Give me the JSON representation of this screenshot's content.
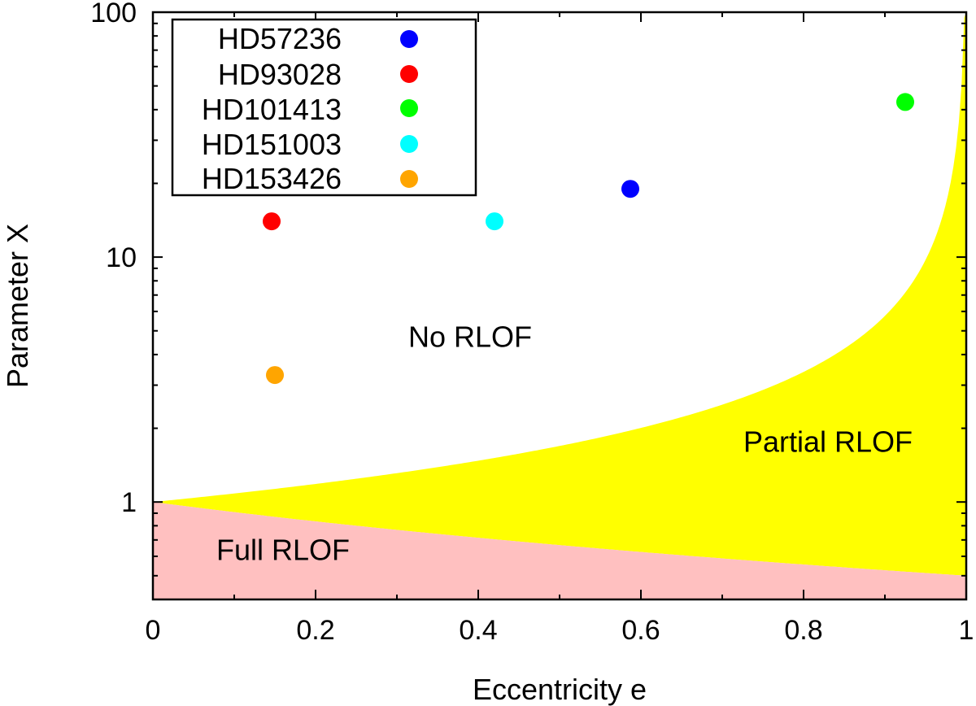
{
  "chart_data": {
    "type": "scatter",
    "title": "",
    "xlabel": "Eccentricity e",
    "ylabel": "Parameter X",
    "xlim": [
      0,
      1
    ],
    "ylim": [
      0.4,
      100
    ],
    "yscale": "log",
    "x_ticks": [
      {
        "value": 0,
        "label": "0"
      },
      {
        "value": 0.2,
        "label": "0.2"
      },
      {
        "value": 0.4,
        "label": "0.4"
      },
      {
        "value": 0.6,
        "label": "0.6"
      },
      {
        "value": 0.8,
        "label": "0.8"
      },
      {
        "value": 1,
        "label": "1"
      }
    ],
    "y_ticks": [
      {
        "value": 1,
        "label": "1"
      },
      {
        "value": 10,
        "label": "10"
      },
      {
        "value": 100,
        "label": "100"
      }
    ],
    "series": [
      {
        "name": "HD57236",
        "color": "#0000ff",
        "x": 0.587,
        "y": 19.0
      },
      {
        "name": "HD93028",
        "color": "#ff0000",
        "x": 0.146,
        "y": 14.0
      },
      {
        "name": "HD101413",
        "color": "#00ff00",
        "x": 0.925,
        "y": 43.0
      },
      {
        "name": "HD151003",
        "color": "#00ffff",
        "x": 0.42,
        "y": 14.0
      },
      {
        "name": "HD153426",
        "color": "#ffa500",
        "x": 0.15,
        "y": 3.3
      }
    ],
    "regions": [
      {
        "name": "No RLOF",
        "label": "No RLOF",
        "color": "#ffffff",
        "label_at": [
          0.39,
          4.3
        ]
      },
      {
        "name": "Partial RLOF",
        "label": "Partial RLOF",
        "color": "#ffff00",
        "label_at": [
          0.83,
          1.6
        ]
      },
      {
        "name": "Full RLOF",
        "label": "Full RLOF",
        "color": "#ffc0c0",
        "label_at": [
          0.16,
          0.58
        ]
      }
    ],
    "legend": {
      "position": "top-left"
    }
  }
}
